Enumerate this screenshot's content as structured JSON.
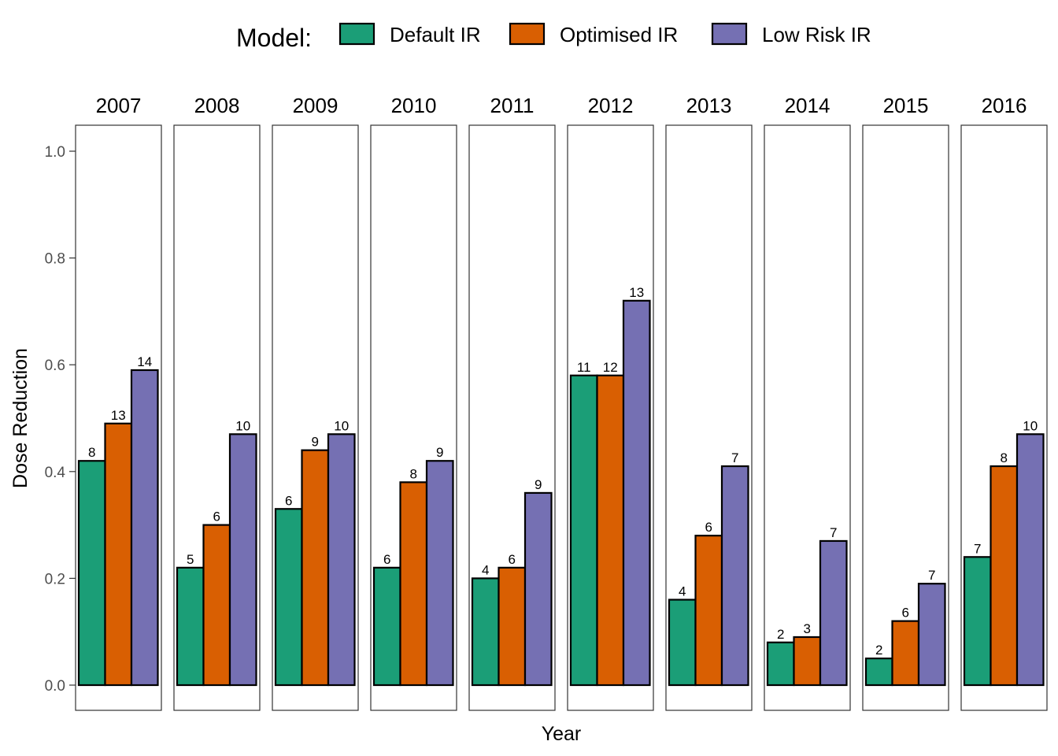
{
  "legend": {
    "title": "Model:",
    "items": [
      {
        "label": "Default IR",
        "color": "#1B9E77"
      },
      {
        "label": "Optimised IR",
        "color": "#D95F02"
      },
      {
        "label": "Low Risk IR",
        "color": "#7570B3"
      }
    ]
  },
  "chart_data": {
    "type": "bar",
    "xlabel": "Year",
    "ylabel": "Dose Reduction",
    "ylim": [
      0,
      1
    ],
    "yticks": [
      "0.0",
      "0.2",
      "0.4",
      "0.6",
      "0.8",
      "1.0"
    ],
    "grid": false,
    "legend_position": "top",
    "categories": [
      "2007",
      "2008",
      "2009",
      "2010",
      "2011",
      "2012",
      "2013",
      "2014",
      "2015",
      "2016"
    ],
    "series": [
      {
        "name": "Default IR",
        "color": "#1B9E77",
        "values": [
          0.42,
          0.22,
          0.33,
          0.22,
          0.2,
          0.58,
          0.16,
          0.08,
          0.05,
          0.24
        ],
        "labels": [
          "8",
          "5",
          "6",
          "6",
          "4",
          "11",
          "4",
          "2",
          "2",
          "7"
        ]
      },
      {
        "name": "Optimised IR",
        "color": "#D95F02",
        "values": [
          0.49,
          0.3,
          0.44,
          0.38,
          0.22,
          0.58,
          0.28,
          0.09,
          0.12,
          0.41
        ],
        "labels": [
          "13",
          "6",
          "9",
          "8",
          "6",
          "12",
          "6",
          "3",
          "6",
          "8"
        ]
      },
      {
        "name": "Low Risk IR",
        "color": "#7570B3",
        "values": [
          0.59,
          0.47,
          0.47,
          0.42,
          0.36,
          0.72,
          0.41,
          0.27,
          0.19,
          0.47
        ],
        "labels": [
          "14",
          "10",
          "10",
          "9",
          "9",
          "13",
          "7",
          "7",
          "7",
          "10"
        ]
      }
    ]
  }
}
